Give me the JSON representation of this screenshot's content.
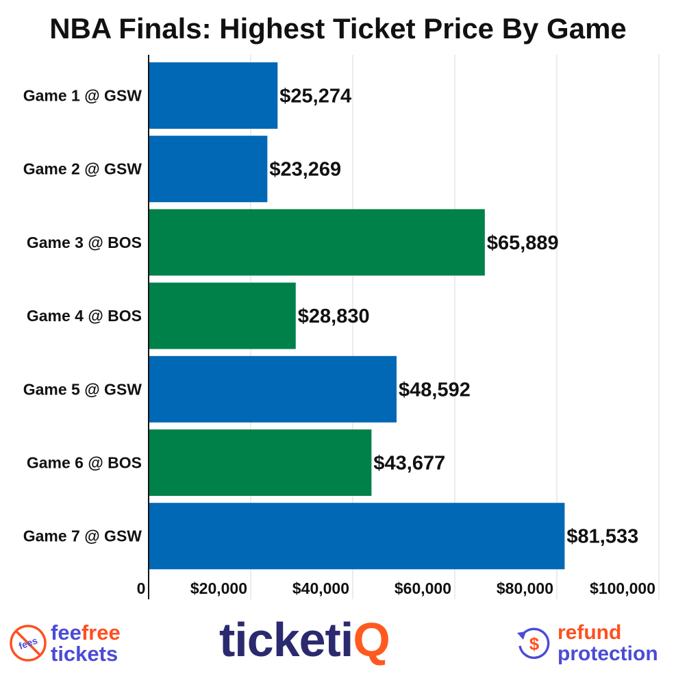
{
  "chart_data": {
    "type": "bar",
    "orientation": "horizontal",
    "title": "NBA Finals: Highest Ticket Price By Game",
    "categories": [
      "Game 1 @ GSW",
      "Game 2 @ GSW",
      "Game 3 @ BOS",
      "Game 4 @ BOS",
      "Game 5 @ GSW",
      "Game 6 @ BOS",
      "Game 7 @ GSW"
    ],
    "values": [
      25274,
      23269,
      65889,
      28830,
      48592,
      43677,
      81533
    ],
    "value_labels": [
      "$25,274",
      "$23,269",
      "$65,889",
      "$28,830",
      "$48,592",
      "$43,677",
      "$81,533"
    ],
    "bar_colors": [
      "#0068b5",
      "#0068b5",
      "#00814a",
      "#00814a",
      "#0068b5",
      "#00814a",
      "#0068b5"
    ],
    "xlim": [
      0,
      100000
    ],
    "x_ticks": [
      0,
      20000,
      40000,
      60000,
      80000,
      100000
    ],
    "x_tick_labels": [
      "0",
      "$20,000",
      "$40,000",
      "$60,000",
      "$80,000",
      "$100,000"
    ],
    "grid": true,
    "xlabel": "",
    "ylabel": ""
  },
  "footer": {
    "feefree_badge": "fees",
    "feefree_line1a": "fee",
    "feefree_line1b": "free",
    "feefree_line2": "tickets",
    "ticketiq_main": "ticketi",
    "ticketiq_q": "Q",
    "refund_icon": "$",
    "refund_line1": "refund",
    "refund_line2": "protection"
  },
  "colors": {
    "gsw": "#0068b5",
    "bos": "#00814a",
    "accent_orange": "#ff4f1f",
    "brand_purple": "#4b4bd6",
    "brand_navy": "#2b2a6e"
  }
}
